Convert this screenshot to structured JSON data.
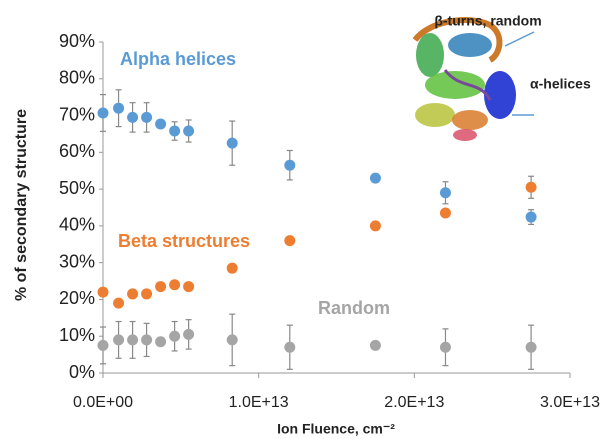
{
  "chart_data": {
    "type": "scatter",
    "x_label": "Ion Fluence, cm⁻²",
    "y_label": "% of secondary structure",
    "annotations": [
      "β-turns, random",
      "α-helices"
    ],
    "x": [
      0,
      1000000000000.0,
      1900000000000.0,
      2800000000000.0,
      3700000000000.0,
      4600000000000.0,
      5500000000000.0,
      8300000000000.0,
      12000000000000.0,
      17500000000000.0,
      22000000000000.0,
      27500000000000.0
    ],
    "series": [
      {
        "name": "Alpha helices",
        "color": "#5b9bd5",
        "values": [
          70.7,
          72,
          69.5,
          69.5,
          67.7,
          65.8,
          65.8,
          62.5,
          56.5,
          53,
          49,
          42.4
        ],
        "errors": [
          5,
          5,
          4,
          4,
          0,
          2.5,
          3,
          6,
          4,
          0,
          3,
          2
        ]
      },
      {
        "name": "Beta structures",
        "color": "#ed7d31",
        "values": [
          22,
          19,
          21.5,
          21.5,
          23.5,
          24,
          23.5,
          28.5,
          36,
          40,
          43.5,
          50.5
        ],
        "errors": [
          0.5,
          0,
          0,
          0,
          0,
          1,
          0,
          0,
          1,
          0,
          1,
          3
        ]
      },
      {
        "name": "Random",
        "color": "#a5a5a5",
        "values": [
          7.5,
          9,
          9,
          9,
          8.5,
          10,
          10.5,
          9,
          7,
          7.5,
          7,
          7
        ],
        "errors": [
          5,
          5,
          5,
          4.5,
          0,
          4,
          4,
          7,
          6,
          0,
          5,
          6
        ]
      }
    ],
    "xlim": [
      0,
      30000000000000.0
    ],
    "xticks": [
      {
        "value": 0,
        "label": "0.0E+00"
      },
      {
        "value": 10000000000000.0,
        "label": "1.0E+13"
      },
      {
        "value": 20000000000000.0,
        "label": "2.0E+13"
      },
      {
        "value": 30000000000000.0,
        "label": "3.0E+13"
      }
    ],
    "ylim": [
      0,
      90
    ],
    "yticks": [
      {
        "value": 0,
        "label": "0%"
      },
      {
        "value": 10,
        "label": "10%"
      },
      {
        "value": 20,
        "label": "20%"
      },
      {
        "value": 30,
        "label": "30%"
      },
      {
        "value": 40,
        "label": "40%"
      },
      {
        "value": 50,
        "label": "50%"
      },
      {
        "value": 60,
        "label": "60%"
      },
      {
        "value": 70,
        "label": "70%"
      },
      {
        "value": 80,
        "label": "80%"
      },
      {
        "value": 90,
        "label": "90%"
      }
    ],
    "grid": false
  }
}
